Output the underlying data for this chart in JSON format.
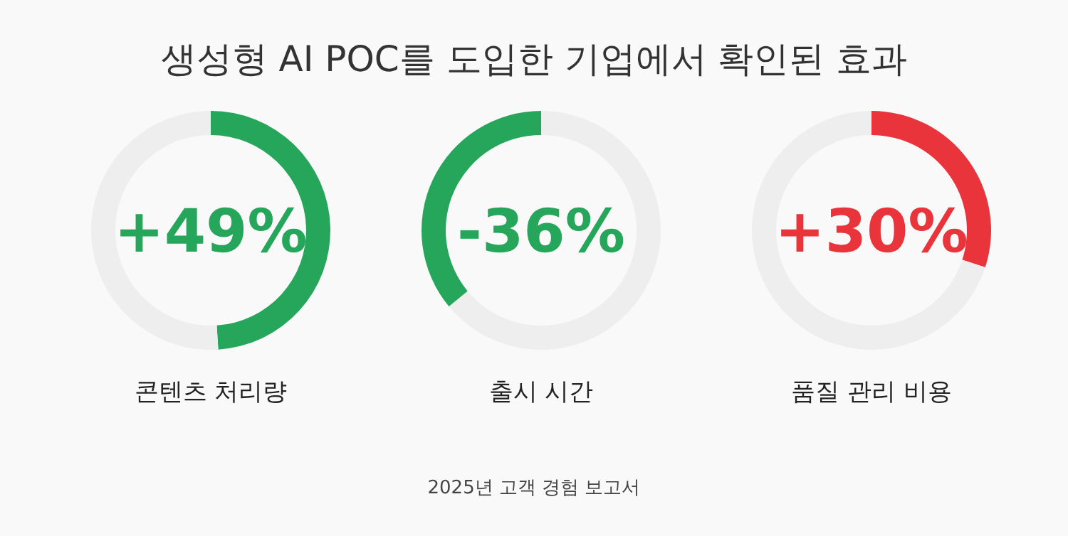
{
  "chart_data": [
    {
      "type": "donut",
      "title": "생성형 AI POC를 도입한 기업에서 확인된 효과",
      "xlabel": "콘텐츠 처리량",
      "categories": [
        null,
        null
      ],
      "values": [
        49,
        51
      ],
      "colors": [
        "#26a65b",
        "#eeeeee"
      ],
      "annotations": [
        "+49%"
      ]
    },
    {
      "type": "donut",
      "xlabel": "출시 시간",
      "categories": [
        null,
        null
      ],
      "values": [
        64,
        36
      ],
      "colors": [
        "#eeeeee",
        "#26a65b"
      ],
      "annotations": [
        "-36%",
        "2025년 고객 경험 보고서"
      ]
    },
    {
      "type": "donut",
      "xlabel": "품질 관리 비용",
      "categories": [
        null,
        null
      ],
      "values": [
        30,
        70
      ],
      "colors": [
        "#e8343a",
        "#eeeeee"
      ],
      "annotations": [
        "+30%"
      ]
    }
  ]
}
